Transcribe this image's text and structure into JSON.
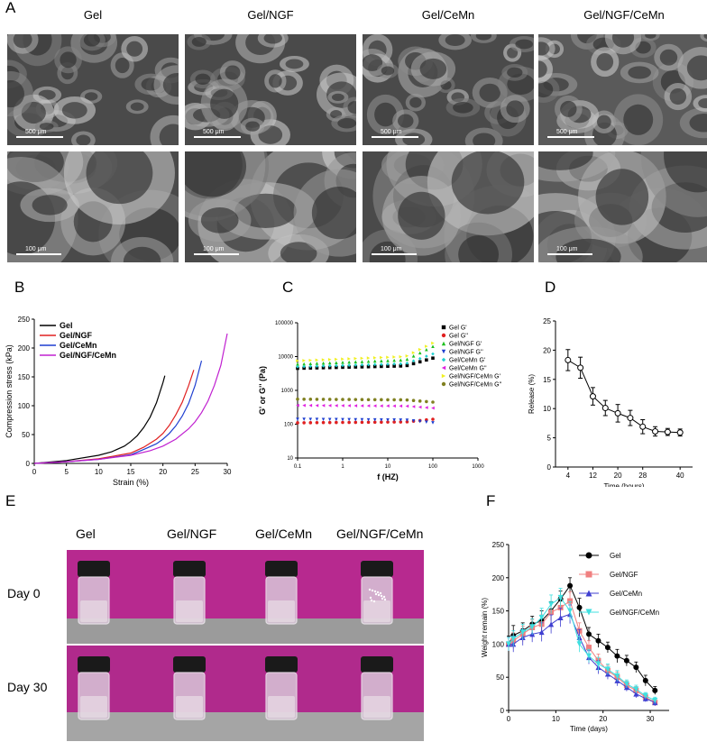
{
  "panels": {
    "A": {
      "letter": "A",
      "columns": [
        "Gel",
        "Gel/NGF",
        "Gel/CeMn",
        "Gel/NGF/CeMn"
      ],
      "scale_top": "500 μm",
      "scale_bottom": "100 μm"
    },
    "B": {
      "letter": "B"
    },
    "C": {
      "letter": "C"
    },
    "D": {
      "letter": "D"
    },
    "E": {
      "letter": "E",
      "columns": [
        "Gel",
        "Gel/NGF",
        "Gel/CeMn",
        "Gel/NGF/CeMn"
      ],
      "rows": [
        "Day 0",
        "Day 30"
      ]
    },
    "F": {
      "letter": "F"
    }
  },
  "chart_data": [
    {
      "id": "B",
      "type": "line",
      "xlabel": "Strain (%)",
      "ylabel": "Compression stress (kPa)",
      "xlim": [
        0,
        30
      ],
      "ylim": [
        0,
        250
      ],
      "xticks": [
        0,
        5,
        10,
        15,
        20,
        25,
        30
      ],
      "yticks": [
        0,
        50,
        100,
        150,
        200,
        250
      ],
      "legend_position": "top-left",
      "series": [
        {
          "name": "Gel",
          "color": "#000000",
          "x": [
            0,
            5,
            10,
            12,
            14,
            15,
            16,
            17,
            18,
            19,
            20,
            20.3
          ],
          "y": [
            0,
            5,
            14,
            20,
            30,
            38,
            48,
            62,
            80,
            105,
            140,
            152
          ]
        },
        {
          "name": "Gel/NGF",
          "color": "#e02020",
          "x": [
            0,
            5,
            10,
            15,
            17,
            19,
            20,
            21,
            22,
            23,
            24,
            24.8
          ],
          "y": [
            0,
            3,
            8,
            18,
            28,
            42,
            52,
            66,
            84,
            106,
            135,
            162
          ]
        },
        {
          "name": "Gel/CeMn",
          "color": "#1f3fd0",
          "x": [
            0,
            5,
            10,
            15,
            17,
            19,
            20,
            21,
            22,
            23,
            24,
            25,
            26
          ],
          "y": [
            0,
            3,
            7,
            15,
            24,
            34,
            42,
            52,
            65,
            82,
            104,
            135,
            178
          ]
        },
        {
          "name": "Gel/NGF/CeMn",
          "color": "#c020d0",
          "x": [
            0,
            5,
            10,
            15,
            18,
            20,
            22,
            24,
            25,
            26,
            27,
            28,
            29,
            30
          ],
          "y": [
            0,
            3,
            7,
            14,
            22,
            30,
            42,
            60,
            72,
            88,
            108,
            135,
            170,
            225
          ]
        }
      ]
    },
    {
      "id": "C",
      "type": "scatter",
      "xlabel": "f (HZ)",
      "ylabel": "G' or G'' (Pa)",
      "xscale": "log",
      "yscale": "log",
      "xlim": [
        0.1,
        1000
      ],
      "ylim": [
        10,
        100000
      ],
      "xticks": [
        "0.1",
        "1",
        "10",
        "100",
        "1000"
      ],
      "yticks": [
        "10",
        "100",
        "1000",
        "10000",
        "100000"
      ],
      "legend_position": "right",
      "x_range": [
        0.1,
        100
      ],
      "series": [
        {
          "name": "Gel G'",
          "color": "#000000",
          "marker": "square",
          "base": 4500,
          "end": 9000
        },
        {
          "name": "Gel G''",
          "color": "#e02020",
          "marker": "circle",
          "base": 110,
          "end": 140
        },
        {
          "name": "Gel/NGF G'",
          "color": "#1fc01f",
          "marker": "triangle-up",
          "base": 6000,
          "end": 20000
        },
        {
          "name": "Gel/NGF G''",
          "color": "#1f3fd0",
          "marker": "triangle-down",
          "base": 140,
          "end": 110
        },
        {
          "name": "Gel/CeMn G'",
          "color": "#20d0d0",
          "marker": "diamond",
          "base": 5000,
          "end": 12000
        },
        {
          "name": "Gel/CeMn G''",
          "color": "#e020e0",
          "marker": "triangle-left",
          "base": 360,
          "end": 300
        },
        {
          "name": "Gel/NGF/CeMn G'",
          "color": "#f0f020",
          "marker": "triangle-right",
          "base": 7500,
          "end": 25000
        },
        {
          "name": "Gel/NGF/CeMn G''",
          "color": "#808020",
          "marker": "circle",
          "base": 550,
          "end": 450
        }
      ]
    },
    {
      "id": "D",
      "type": "line",
      "xlabel": "Time (hours)",
      "ylabel": "Release (%)",
      "xlim": [
        0,
        44
      ],
      "ylim": [
        0,
        25
      ],
      "xticks": [
        4,
        12,
        20,
        28,
        40
      ],
      "yticks": [
        0,
        5,
        10,
        15,
        20,
        25
      ],
      "series": [
        {
          "name": "",
          "color": "#000000",
          "x": [
            4,
            8,
            12,
            16,
            20,
            24,
            28,
            32,
            36,
            40
          ],
          "y": [
            18.3,
            17.0,
            12.1,
            10.1,
            9.2,
            8.4,
            6.9,
            6.1,
            6.0,
            5.9
          ],
          "err": [
            1.8,
            1.8,
            1.5,
            1.3,
            1.5,
            1.3,
            1.2,
            0.8,
            0.6,
            0.6
          ]
        }
      ]
    },
    {
      "id": "F",
      "type": "line",
      "xlabel": "Time (days)",
      "ylabel": "Weight remain (%)",
      "xlim": [
        0,
        34
      ],
      "ylim": [
        0,
        250
      ],
      "xticks": [
        0,
        10,
        20,
        30
      ],
      "yticks": [
        0,
        50,
        100,
        150,
        200,
        250
      ],
      "legend_position": "top-right",
      "series": [
        {
          "name": "Gel",
          "color": "#000000",
          "marker": "circle",
          "x": [
            0,
            1,
            3,
            5,
            7,
            9,
            11,
            13,
            15,
            17,
            19,
            21,
            23,
            25,
            27,
            29,
            31
          ],
          "y": [
            100,
            113,
            120,
            130,
            135,
            150,
            168,
            188,
            155,
            115,
            105,
            95,
            82,
            75,
            65,
            45,
            30
          ],
          "err": [
            12,
            15,
            12,
            12,
            15,
            14,
            12,
            12,
            14,
            10,
            10,
            8,
            10,
            8,
            8,
            8,
            6
          ]
        },
        {
          "name": "Gel/NGF",
          "color": "#f08080",
          "marker": "square",
          "x": [
            0,
            1,
            3,
            5,
            7,
            9,
            11,
            13,
            15,
            17,
            19,
            21,
            23,
            25,
            27,
            29,
            31
          ],
          "y": [
            100,
            105,
            115,
            125,
            130,
            148,
            155,
            165,
            120,
            95,
            75,
            60,
            50,
            38,
            30,
            20,
            12
          ],
          "err": [
            10,
            12,
            12,
            12,
            14,
            14,
            14,
            14,
            12,
            10,
            10,
            8,
            8,
            6,
            6,
            5,
            5
          ]
        },
        {
          "name": "Gel/CeMn",
          "color": "#3f3fd0",
          "marker": "triangle-up",
          "x": [
            0,
            1,
            3,
            5,
            7,
            9,
            11,
            13,
            15,
            17,
            19,
            21,
            23,
            25,
            27,
            29,
            31
          ],
          "y": [
            100,
            100,
            110,
            115,
            118,
            130,
            140,
            145,
            110,
            80,
            65,
            55,
            45,
            35,
            25,
            18,
            12
          ],
          "err": [
            10,
            12,
            12,
            12,
            14,
            14,
            14,
            14,
            12,
            10,
            10,
            8,
            8,
            6,
            6,
            5,
            5
          ]
        },
        {
          "name": "Gel/NGF/CeMn",
          "color": "#40e0e0",
          "marker": "triangle-down",
          "x": [
            0,
            1,
            3,
            5,
            7,
            9,
            11,
            13,
            15,
            17,
            19,
            21,
            23,
            25,
            27,
            29,
            31
          ],
          "y": [
            100,
            108,
            118,
            126,
            140,
            160,
            170,
            150,
            100,
            82,
            70,
            62,
            52,
            40,
            32,
            22,
            15
          ],
          "err": [
            10,
            12,
            12,
            12,
            14,
            14,
            14,
            14,
            12,
            10,
            10,
            8,
            8,
            6,
            6,
            5,
            5
          ]
        }
      ]
    }
  ]
}
